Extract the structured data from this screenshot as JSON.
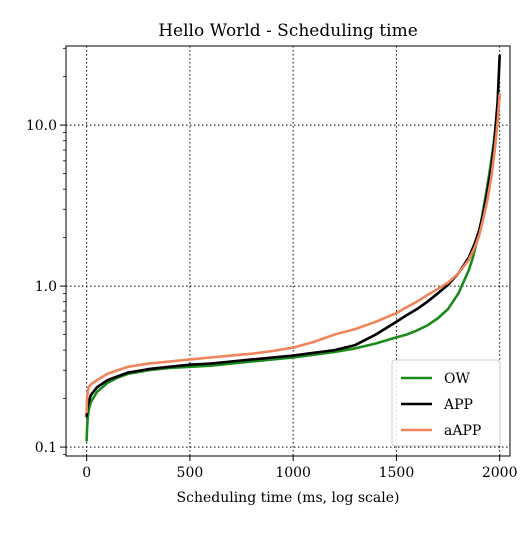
{
  "chart_data": {
    "type": "line",
    "title": "Hello World - Scheduling time",
    "xlabel": "Scheduling time (ms, log scale)",
    "ylabel": "",
    "xlim": [
      -100,
      2050
    ],
    "ylim": [
      0.088,
      31
    ],
    "yscale": "log",
    "grid": true,
    "legend_position": "bottom-right",
    "x_ticks": [
      0,
      500,
      1000,
      1500,
      2000
    ],
    "x_tick_labels": [
      "0",
      "500",
      "1000",
      "1500",
      "2000"
    ],
    "y_ticks": [
      0.1,
      1.0,
      10.0
    ],
    "y_tick_labels": [
      "0.1",
      "1.0",
      "10.0"
    ],
    "series": [
      {
        "name": "OW",
        "color": "#1a8a1a",
        "x": [
          0,
          2,
          5,
          10,
          20,
          50,
          100,
          150,
          200,
          300,
          400,
          500,
          600,
          700,
          800,
          900,
          1000,
          1100,
          1200,
          1300,
          1400,
          1500,
          1550,
          1600,
          1650,
          1700,
          1750,
          1800,
          1850,
          1870,
          1890,
          1910,
          1930,
          1950,
          1970,
          1985,
          2000
        ],
        "y": [
          0.11,
          0.13,
          0.15,
          0.17,
          0.19,
          0.22,
          0.25,
          0.27,
          0.285,
          0.3,
          0.31,
          0.315,
          0.32,
          0.33,
          0.34,
          0.35,
          0.36,
          0.375,
          0.39,
          0.41,
          0.44,
          0.48,
          0.5,
          0.53,
          0.57,
          0.63,
          0.72,
          0.9,
          1.25,
          1.5,
          1.9,
          2.5,
          3.5,
          5.0,
          7.5,
          11.0,
          15.0
        ]
      },
      {
        "name": "APP",
        "color": "#000000",
        "x": [
          0,
          2,
          5,
          10,
          20,
          50,
          100,
          150,
          200,
          300,
          400,
          500,
          600,
          700,
          800,
          900,
          1000,
          1100,
          1200,
          1300,
          1400,
          1500,
          1550,
          1600,
          1650,
          1700,
          1750,
          1800,
          1850,
          1880,
          1900,
          1920,
          1940,
          1960,
          1975,
          1990,
          2000
        ],
        "y": [
          0.155,
          0.17,
          0.18,
          0.19,
          0.21,
          0.235,
          0.26,
          0.275,
          0.29,
          0.305,
          0.315,
          0.325,
          0.33,
          0.34,
          0.35,
          0.36,
          0.37,
          0.385,
          0.4,
          0.43,
          0.5,
          0.6,
          0.66,
          0.72,
          0.8,
          0.9,
          1.02,
          1.2,
          1.5,
          1.85,
          2.2,
          2.8,
          3.8,
          5.5,
          8.0,
          14.0,
          27.0
        ]
      },
      {
        "name": "aAPP",
        "color": "#f0845a",
        "x": [
          0,
          2,
          5,
          10,
          20,
          50,
          100,
          150,
          200,
          300,
          400,
          500,
          600,
          700,
          800,
          900,
          1000,
          1100,
          1200,
          1300,
          1400,
          1500,
          1550,
          1600,
          1650,
          1700,
          1750,
          1800,
          1850,
          1880,
          1900,
          1920,
          1940,
          1960,
          1975,
          1990,
          2000
        ],
        "y": [
          0.165,
          0.2,
          0.22,
          0.235,
          0.245,
          0.26,
          0.285,
          0.3,
          0.315,
          0.33,
          0.34,
          0.35,
          0.36,
          0.37,
          0.38,
          0.395,
          0.415,
          0.45,
          0.5,
          0.54,
          0.6,
          0.68,
          0.74,
          0.8,
          0.88,
          0.96,
          1.05,
          1.2,
          1.45,
          1.75,
          2.05,
          2.6,
          3.4,
          4.8,
          6.8,
          10.5,
          15.5
        ]
      }
    ]
  }
}
